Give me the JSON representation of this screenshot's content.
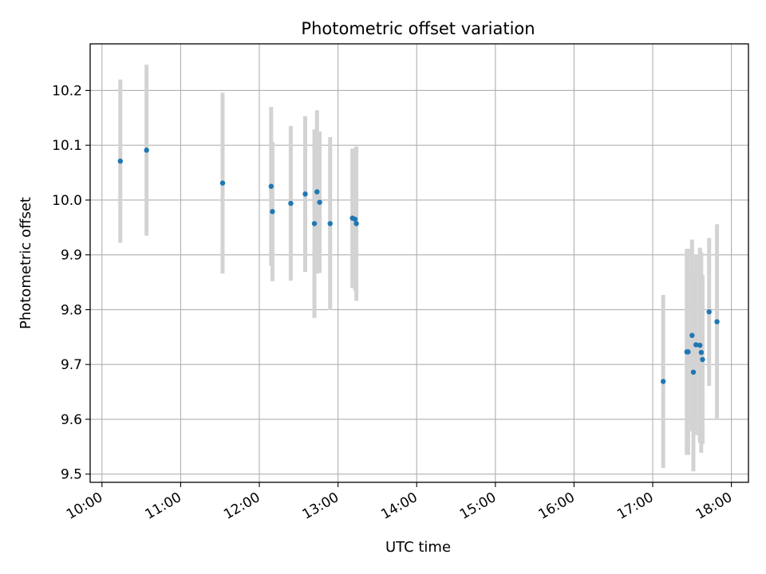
{
  "chart_data": {
    "type": "scatter",
    "title": "Photometric offset variation",
    "xlabel": "UTC time",
    "ylabel": "Photometric offset",
    "x_ticks": [
      "10:00",
      "11:00",
      "12:00",
      "13:00",
      "14:00",
      "15:00",
      "16:00",
      "17:00",
      "18:00"
    ],
    "y_ticks": [
      "9.5",
      "9.6",
      "9.7",
      "9.8",
      "9.9",
      "10.0",
      "10.1",
      "10.2"
    ],
    "xlim": [
      "09:51",
      "18:13"
    ],
    "ylim": [
      9.485,
      10.285
    ],
    "grid": true,
    "colors": {
      "point": "#1f77b4",
      "errorbar": "#d3d3d3",
      "grid": "#b0b0b0"
    },
    "series": [
      {
        "points": [
          {
            "x": "10:14",
            "y": 10.071,
            "err": 0.149
          },
          {
            "x": "10:34",
            "y": 10.091,
            "err": 0.156
          },
          {
            "x": "11:32",
            "y": 10.031,
            "err": 0.165
          },
          {
            "x": "12:09",
            "y": 10.025,
            "err": 0.145
          },
          {
            "x": "12:10",
            "y": 9.979,
            "err": 0.127
          },
          {
            "x": "12:24",
            "y": 9.994,
            "err": 0.141
          },
          {
            "x": "12:35",
            "y": 10.011,
            "err": 0.142
          },
          {
            "x": "12:42",
            "y": 9.957,
            "err": 0.172
          },
          {
            "x": "12:44",
            "y": 10.015,
            "err": 0.149
          },
          {
            "x": "12:46",
            "y": 9.996,
            "err": 0.129
          },
          {
            "x": "12:54",
            "y": 9.957,
            "err": 0.158
          },
          {
            "x": "13:11",
            "y": 9.967,
            "err": 0.127
          },
          {
            "x": "13:13",
            "y": 9.965,
            "err": 0.13
          },
          {
            "x": "13:14",
            "y": 9.957,
            "err": 0.141
          },
          {
            "x": "17:08",
            "y": 9.669,
            "err": 0.158
          },
          {
            "x": "17:26",
            "y": 9.723,
            "err": 0.188
          },
          {
            "x": "17:27",
            "y": 9.723,
            "err": 0.188
          },
          {
            "x": "17:30",
            "y": 9.753,
            "err": 0.175
          },
          {
            "x": "17:31",
            "y": 9.686,
            "err": 0.181
          },
          {
            "x": "17:33",
            "y": 9.736,
            "err": 0.165
          },
          {
            "x": "17:36",
            "y": 9.735,
            "err": 0.178
          },
          {
            "x": "17:37",
            "y": 9.722,
            "err": 0.183
          },
          {
            "x": "17:38",
            "y": 9.709,
            "err": 0.154
          },
          {
            "x": "17:43",
            "y": 9.796,
            "err": 0.135
          },
          {
            "x": "17:49",
            "y": 9.778,
            "err": 0.178
          }
        ]
      }
    ]
  }
}
